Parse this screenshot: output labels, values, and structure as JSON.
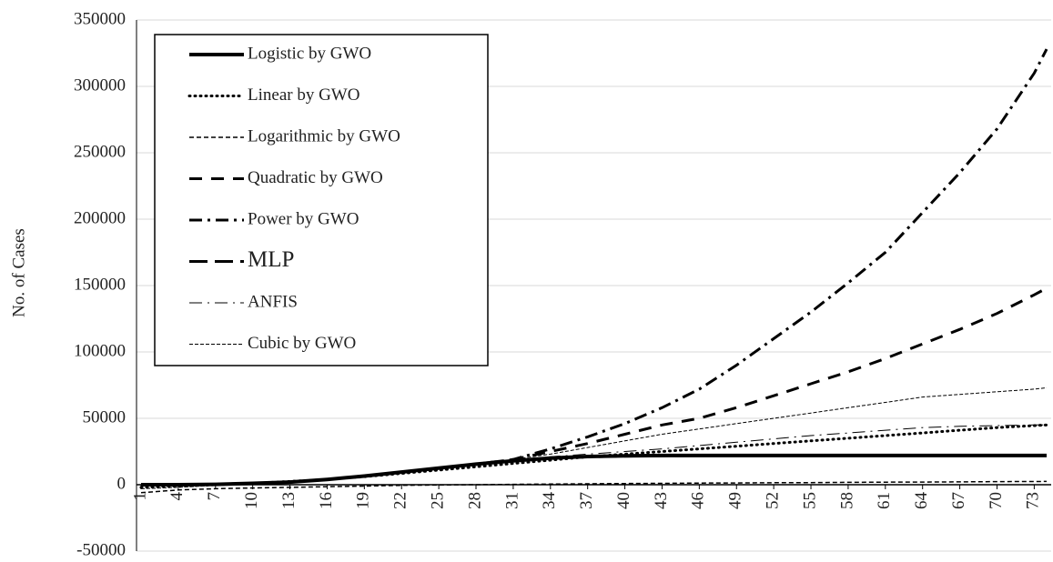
{
  "chart_data": {
    "type": "line",
    "y_label": "No. of Cases",
    "x": [
      1,
      4,
      7,
      10,
      13,
      16,
      19,
      22,
      25,
      28,
      31,
      34,
      37,
      40,
      43,
      46,
      49,
      52,
      55,
      58,
      61,
      64,
      67,
      70,
      73,
      74
    ],
    "xlim": [
      1,
      74
    ],
    "xticks": [
      1,
      4,
      7,
      10,
      13,
      16,
      19,
      22,
      25,
      28,
      31,
      34,
      37,
      40,
      43,
      46,
      49,
      52,
      55,
      58,
      61,
      64,
      67,
      70,
      73
    ],
    "ylim": [
      -50000,
      350000
    ],
    "yticks": [
      -50000,
      0,
      50000,
      100000,
      150000,
      200000,
      250000,
      300000,
      350000
    ],
    "grid": true,
    "legend": "upper-left",
    "series": [
      {
        "name": "Logistic by GWO",
        "color": "#000000",
        "dash": "none",
        "width": 4,
        "values": [
          0,
          0,
          300,
          1000,
          2000,
          4000,
          6500,
          9500,
          12500,
          15500,
          18000,
          20000,
          21200,
          21800,
          22000,
          22000,
          22000,
          22000,
          22000,
          22000,
          22000,
          22000,
          22000,
          22000,
          22000,
          22000
        ]
      },
      {
        "name": "Linear by GWO",
        "color": "#000000",
        "dash": "1,5",
        "width": 3,
        "values": [
          -2000,
          -1000,
          0,
          1000,
          2500,
          4000,
          6000,
          8500,
          11000,
          13500,
          16000,
          18500,
          21000,
          23000,
          25000,
          27000,
          29000,
          31000,
          33000,
          35000,
          37000,
          39000,
          41000,
          43000,
          44500,
          45000
        ]
      },
      {
        "name": "Logarithmic by GWO",
        "color": "#000000",
        "dash": "5,3",
        "width": 1.5,
        "values": [
          -6000,
          -4000,
          -3000,
          -2500,
          -2000,
          -1500,
          -1000,
          -500,
          -200,
          0,
          300,
          500,
          700,
          900,
          1000,
          1200,
          1300,
          1500,
          1600,
          1800,
          1900,
          2000,
          2100,
          2300,
          2400,
          2500
        ]
      },
      {
        "name": "Quadratic by GWO",
        "color": "#000000",
        "dash": "14,10",
        "width": 3,
        "values": [
          0,
          0,
          300,
          1000,
          2000,
          4000,
          6500,
          9500,
          12500,
          15500,
          19000,
          25000,
          31000,
          38000,
          45000,
          50000,
          58000,
          67000,
          76000,
          85000,
          95000,
          106000,
          117000,
          129000,
          143000,
          148000
        ]
      },
      {
        "name": "Power by GWO",
        "color": "#000000",
        "dash": "14,6,3,6",
        "width": 3,
        "values": [
          0,
          0,
          300,
          1000,
          2000,
          4000,
          6500,
          9500,
          12500,
          15500,
          19000,
          27000,
          36000,
          46000,
          58000,
          72000,
          90000,
          110000,
          130000,
          152000,
          175000,
          205000,
          235000,
          268000,
          310000,
          328000
        ]
      },
      {
        "name": "MLP",
        "color": "#000000",
        "dash": "20,8",
        "width": 3,
        "values": [
          0,
          0,
          300,
          1000,
          2000,
          4000,
          6500,
          9500,
          12500,
          15500,
          18000,
          20000,
          21000,
          21500,
          21800,
          22000,
          22000,
          22000,
          22000,
          22000,
          22000,
          22000,
          22000,
          22000,
          22000,
          22000
        ]
      },
      {
        "name": "ANFIS",
        "color": "#000000",
        "dash": "14,6,2,6",
        "width": 1,
        "values": [
          0,
          0,
          300,
          1000,
          2000,
          4200,
          6800,
          9500,
          12500,
          15500,
          18500,
          21000,
          23000,
          25000,
          27000,
          29500,
          32000,
          34500,
          37000,
          39000,
          41000,
          43000,
          44000,
          44500,
          45000,
          45000
        ]
      },
      {
        "name": "Cubic by GWO",
        "color": "#000000",
        "dash": "4,2",
        "width": 1,
        "values": [
          -3000,
          -2000,
          -500,
          500,
          2000,
          4000,
          6500,
          9500,
          12500,
          15500,
          19000,
          23000,
          28000,
          33000,
          38000,
          42000,
          46000,
          50000,
          54000,
          58000,
          62000,
          66000,
          68000,
          70000,
          72000,
          73000
        ]
      }
    ]
  }
}
